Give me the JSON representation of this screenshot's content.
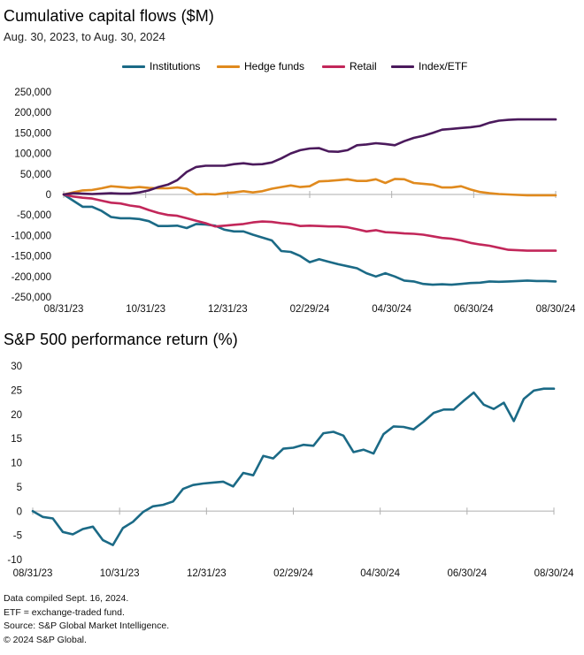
{
  "chart_data": [
    {
      "type": "line",
      "title": "Cumulative capital flows ($M)",
      "subtitle": "Aug. 30, 2023, to Aug. 30, 2024",
      "ylim": [
        -250000,
        250000
      ],
      "yticks": [
        250000,
        200000,
        150000,
        100000,
        50000,
        0,
        -50000,
        -100000,
        -150000,
        -200000,
        -250000
      ],
      "ytick_labels": [
        "250,000",
        "200,000",
        "150,000",
        "100,000",
        "50,000",
        "0",
        "-50,000",
        "-100,000",
        "-150,000",
        "-200,000",
        "-250,000"
      ],
      "xticks": [
        "08/31/23",
        "10/31/23",
        "12/31/23",
        "02/29/24",
        "04/30/24",
        "06/30/24",
        "08/30/24"
      ],
      "x_count": 53,
      "legend_position": "top",
      "series": [
        {
          "name": "Institutions",
          "color": "#1b6a86",
          "values": [
            0,
            -15000,
            -30000,
            -30000,
            -40000,
            -55000,
            -58000,
            -58000,
            -60000,
            -65000,
            -77000,
            -77000,
            -76000,
            -82000,
            -72000,
            -73000,
            -76000,
            -86000,
            -90000,
            -90000,
            -98000,
            -105000,
            -112000,
            -138000,
            -140000,
            -150000,
            -165000,
            -158000,
            -164000,
            -170000,
            -175000,
            -180000,
            -192000,
            -200000,
            -192000,
            -200000,
            -210000,
            -212000,
            -218000,
            -220000,
            -219000,
            -220000,
            -218000,
            -216000,
            -215000,
            -212000,
            -213000,
            -212000,
            -211000,
            -210000,
            -211000,
            -211000,
            -212000
          ]
        },
        {
          "name": "Hedge funds",
          "color": "#e08a1e",
          "values": [
            0,
            5000,
            10000,
            11000,
            15000,
            20000,
            18000,
            16000,
            18000,
            16000,
            15000,
            15000,
            17000,
            14000,
            0,
            1000,
            0,
            3000,
            5000,
            8000,
            5000,
            8000,
            14000,
            18000,
            22000,
            18000,
            20000,
            32000,
            33000,
            35000,
            37000,
            33000,
            33000,
            37000,
            28000,
            38000,
            37000,
            28000,
            26000,
            24000,
            17000,
            17000,
            20000,
            12000,
            6000,
            3000,
            1000,
            0,
            -1000,
            -2000,
            -2000,
            -2000,
            -2000
          ]
        },
        {
          "name": "Retail",
          "color": "#c2275a",
          "values": [
            0,
            -5000,
            -8000,
            -10000,
            -15000,
            -20000,
            -22000,
            -27000,
            -30000,
            -38000,
            -45000,
            -50000,
            -52000,
            -58000,
            -64000,
            -70000,
            -78000,
            -76000,
            -74000,
            -72000,
            -68000,
            -66000,
            -67000,
            -70000,
            -72000,
            -77000,
            -76000,
            -77000,
            -78000,
            -78000,
            -80000,
            -85000,
            -90000,
            -87000,
            -92000,
            -93000,
            -95000,
            -96000,
            -98000,
            -102000,
            -106000,
            -108000,
            -112000,
            -118000,
            -122000,
            -125000,
            -130000,
            -135000,
            -136000,
            -137000,
            -137000,
            -137000,
            -137000
          ]
        },
        {
          "name": "Index/ETF",
          "color": "#4b1a5c",
          "values": [
            0,
            3000,
            2000,
            1000,
            2000,
            3000,
            2000,
            2000,
            5000,
            10000,
            18000,
            24000,
            35000,
            55000,
            67000,
            70000,
            70000,
            70000,
            74000,
            76000,
            73000,
            74000,
            78000,
            88000,
            100000,
            108000,
            112000,
            113000,
            105000,
            104000,
            108000,
            120000,
            122000,
            125000,
            123000,
            120000,
            130000,
            138000,
            143000,
            150000,
            158000,
            160000,
            162000,
            164000,
            167000,
            175000,
            180000,
            182000,
            183000,
            183000,
            183000,
            183000,
            183000
          ]
        }
      ]
    },
    {
      "type": "line",
      "title": "S&P 500 performance return (%)",
      "ylim": [
        -10,
        30
      ],
      "yticks": [
        30,
        25,
        20,
        15,
        10,
        5,
        0,
        -5,
        -10
      ],
      "ytick_labels": [
        "30",
        "25",
        "20",
        "15",
        "10",
        "5",
        "0",
        "-5",
        "-10"
      ],
      "xticks": [
        "08/31/23",
        "10/31/23",
        "12/31/23",
        "02/29/24",
        "04/30/24",
        "06/30/24",
        "08/30/24"
      ],
      "x_count": 53,
      "series": [
        {
          "name": "S&P 500 performance return",
          "color": "#1b6a86",
          "values": [
            0,
            -1.2,
            -1.5,
            -4.3,
            -4.8,
            -3.7,
            -3.2,
            -6.0,
            -7.0,
            -3.5,
            -2.2,
            -0.2,
            1.0,
            1.3,
            2.0,
            4.6,
            5.4,
            5.7,
            5.9,
            6.1,
            5.1,
            7.9,
            7.4,
            11.4,
            10.9,
            12.9,
            13.1,
            13.7,
            13.5,
            16.1,
            16.4,
            15.6,
            12.2,
            12.7,
            11.9,
            15.9,
            17.5,
            17.4,
            16.9,
            18.5,
            20.3,
            21.0,
            21.0,
            22.8,
            24.5,
            22.0,
            21.1,
            22.4,
            18.6,
            23.2,
            24.9,
            25.3,
            25.3
          ]
        }
      ]
    }
  ],
  "footnotes": [
    "Data compiled Sept. 16, 2024.",
    "ETF = exchange-traded fund.",
    "Source: S&P Global Market Intelligence.",
    "© 2024 S&P Global."
  ]
}
